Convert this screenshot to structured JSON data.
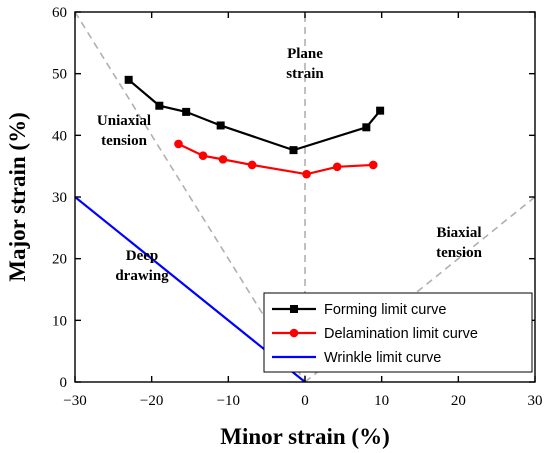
{
  "chart_data": {
    "type": "line",
    "xlabel": "Minor strain (%)",
    "ylabel": "Major strain (%)",
    "xlim": [
      -30,
      30
    ],
    "ylim": [
      0,
      60
    ],
    "xticks": [
      -30,
      -20,
      -10,
      0,
      10,
      20,
      30
    ],
    "yticks": [
      0,
      10,
      20,
      30,
      40,
      50,
      60
    ],
    "xtick_labels": [
      "−30",
      "−20",
      "−10",
      "0",
      "10",
      "20",
      "30"
    ],
    "ytick_labels": [
      "0",
      "10",
      "20",
      "30",
      "40",
      "50",
      "60"
    ],
    "grid": false,
    "legend_position": "bottom-right",
    "series": [
      {
        "name": "Forming limit curve",
        "color": "#000000",
        "marker": "square",
        "x": [
          -23,
          -19,
          -15.5,
          -11,
          -1.5,
          8,
          9.8
        ],
        "y": [
          49,
          44.8,
          43.8,
          41.6,
          37.6,
          41.3,
          44
        ]
      },
      {
        "name": "Delamination limit curve",
        "color": "#ff0000",
        "marker": "circle",
        "x": [
          -16.5,
          -13.3,
          -10.7,
          -6.9,
          0.2,
          4.2,
          8.9
        ],
        "y": [
          38.6,
          36.7,
          36.1,
          35.2,
          33.7,
          34.9,
          35.2
        ]
      },
      {
        "name": "Wrinkle limit curve",
        "color": "#0000ff",
        "marker": "none",
        "x": [
          -30,
          0
        ],
        "y": [
          30,
          0
        ]
      }
    ],
    "reference_lines": [
      {
        "x": [
          -30,
          0
        ],
        "y": [
          60,
          0
        ],
        "color": "#b0b0b0",
        "style": "dashed"
      },
      {
        "x": [
          0,
          0
        ],
        "y": [
          0,
          60
        ],
        "color": "#b0b0b0",
        "style": "dashed"
      },
      {
        "x": [
          0,
          30
        ],
        "y": [
          0,
          30
        ],
        "color": "#b0b0b0",
        "style": "dashed"
      }
    ],
    "annotations": [
      {
        "id": "plane-strain",
        "lines": [
          "Plane",
          "strain"
        ]
      },
      {
        "id": "uniaxial-tension",
        "lines": [
          "Uniaxial",
          "tension"
        ]
      },
      {
        "id": "biaxial-tension",
        "lines": [
          "Biaxial",
          "tension"
        ]
      },
      {
        "id": "deep-drawing",
        "lines": [
          "Deep",
          "drawing"
        ]
      }
    ]
  }
}
